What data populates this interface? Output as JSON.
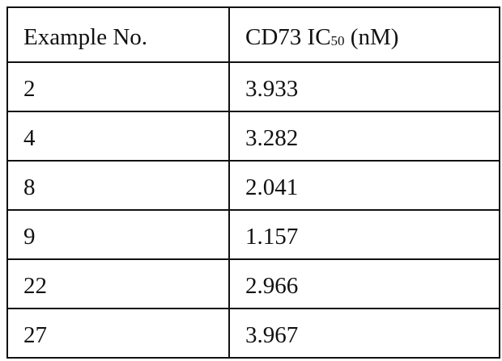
{
  "table": {
    "header": [
      "Example No.",
      {
        "text": "CD73 IC",
        "sub": "50",
        "after": " (nM)"
      }
    ],
    "rows": [
      [
        "2",
        "3.933"
      ],
      [
        "4",
        "3.282"
      ],
      [
        "8",
        "2.041"
      ],
      [
        "9",
        "1.157"
      ],
      [
        "22",
        "2.966"
      ],
      [
        "27",
        "3.967"
      ]
    ]
  }
}
